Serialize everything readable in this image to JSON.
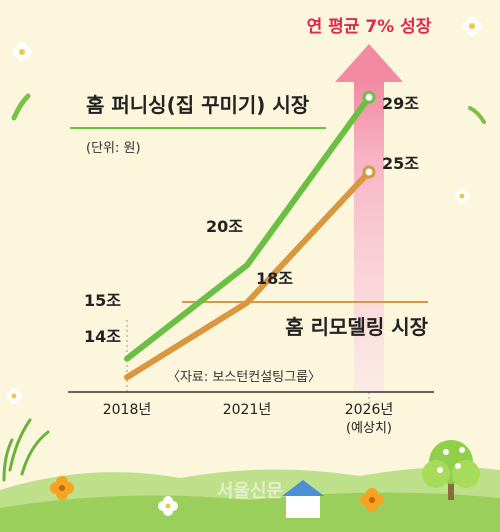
{
  "colors": {
    "background": "#fbf6dc",
    "home_furnishing": "#6cbf45",
    "home_remodeling": "#d9973f",
    "growth_arrow": "#f3a5ba",
    "growth_text": "#e0284f",
    "text": "#222222"
  },
  "labels": {
    "growth_note": "연 평균 7% 성장",
    "unit_note": "(단위: 원)",
    "source_note": "〈자료: 보스턴컨설팅그룹〉",
    "forecast_note": "(예상치)",
    "watermark": "서울신문"
  },
  "chart_data": {
    "type": "line",
    "x": [
      "2018년",
      "2021년",
      "2026년"
    ],
    "ylim": [
      10,
      31
    ],
    "grid": false,
    "series": [
      {
        "name": "홈 퍼니싱(집 꾸미기) 시장",
        "values": [
          15,
          20,
          29
        ],
        "value_labels": [
          "15조",
          "20조",
          "29조"
        ],
        "color": "#6cbf45"
      },
      {
        "name": "홈 리모델링 시장",
        "values": [
          14,
          18,
          25
        ],
        "value_labels": [
          "14조",
          "18조",
          "25조"
        ],
        "color": "#d9973f"
      }
    ]
  }
}
